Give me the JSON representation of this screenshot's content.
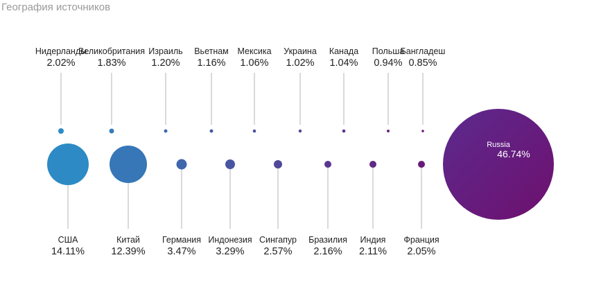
{
  "title": "География источников",
  "chart_data": {
    "type": "bubble",
    "title": "География источников",
    "unit": "%",
    "top_row": [
      {
        "name": "Нидерланды",
        "value": 2.02,
        "label": "2.02%"
      },
      {
        "name": "Великобритания",
        "value": 1.83,
        "label": "1.83%"
      },
      {
        "name": "Израиль",
        "value": 1.2,
        "label": "1.20%"
      },
      {
        "name": "Вьетнам",
        "value": 1.16,
        "label": "1.16%"
      },
      {
        "name": "Мексика",
        "value": 1.06,
        "label": "1.06%"
      },
      {
        "name": "Украина",
        "value": 1.02,
        "label": "1.02%"
      },
      {
        "name": "Канада",
        "value": 1.04,
        "label": "1.04%"
      },
      {
        "name": "Польша",
        "value": 0.94,
        "label": "0.94%"
      },
      {
        "name": "Бангладеш",
        "value": 0.85,
        "label": "0.85%"
      }
    ],
    "bottom_row": [
      {
        "name": "США",
        "value": 14.11,
        "label": "14.11%"
      },
      {
        "name": "Китай",
        "value": 12.39,
        "label": "12.39%"
      },
      {
        "name": "Германия",
        "value": 3.47,
        "label": "3.47%"
      },
      {
        "name": "Индонезия",
        "value": 3.29,
        "label": "3.29%"
      },
      {
        "name": "Сингапур",
        "value": 2.57,
        "label": "2.57%"
      },
      {
        "name": "Бразилия",
        "value": 2.16,
        "label": "2.16%"
      },
      {
        "name": "Индия",
        "value": 2.11,
        "label": "2.11%"
      },
      {
        "name": "Франция",
        "value": 2.05,
        "label": "2.05%"
      }
    ],
    "main": {
      "name": "Russia",
      "value": 46.74,
      "label": "46.74%"
    },
    "colors": {
      "start": "#2a90c8",
      "end": "#6b1577"
    }
  }
}
